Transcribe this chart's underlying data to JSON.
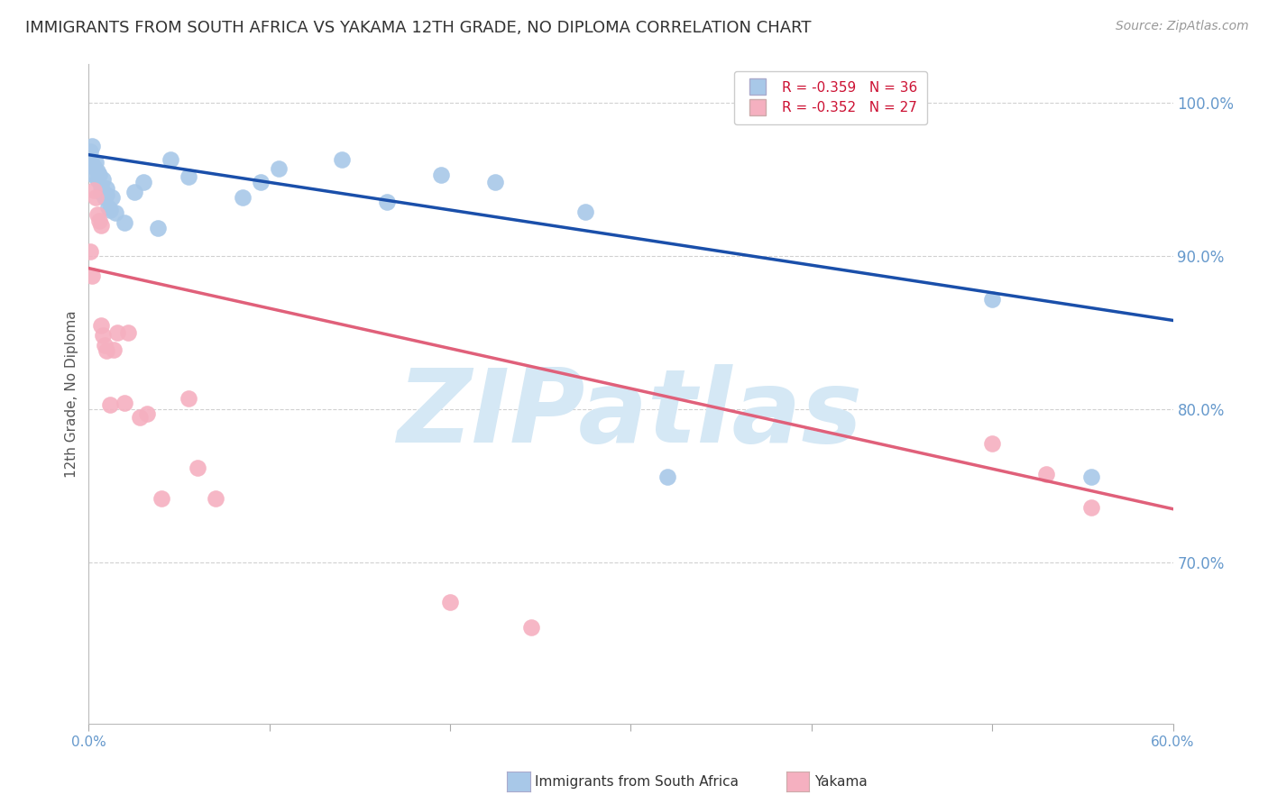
{
  "title": "IMMIGRANTS FROM SOUTH AFRICA VS YAKAMA 12TH GRADE, NO DIPLOMA CORRELATION CHART",
  "source": "Source: ZipAtlas.com",
  "ylabel": "12th Grade, No Diploma",
  "xlim": [
    0.0,
    0.6
  ],
  "ylim": [
    0.595,
    1.025
  ],
  "yticks": [
    0.7,
    0.8,
    0.9,
    1.0
  ],
  "xticks": [
    0.0,
    0.1,
    0.2,
    0.3,
    0.4,
    0.5,
    0.6
  ],
  "blue_R": -0.359,
  "blue_N": 36,
  "pink_R": -0.352,
  "pink_N": 27,
  "blue_line_x": [
    0.0,
    0.6
  ],
  "blue_line_y": [
    0.966,
    0.858
  ],
  "pink_line_x": [
    0.0,
    0.6
  ],
  "pink_line_y": [
    0.892,
    0.735
  ],
  "blue_dot_color": "#a8c8e8",
  "blue_line_color": "#1a4faa",
  "pink_dot_color": "#f5b0c0",
  "pink_line_color": "#e0607a",
  "blue_scatter_x": [
    0.001,
    0.002,
    0.002,
    0.003,
    0.003,
    0.004,
    0.005,
    0.005,
    0.006,
    0.007,
    0.007,
    0.008,
    0.009,
    0.01,
    0.01,
    0.011,
    0.012,
    0.013,
    0.015,
    0.02,
    0.025,
    0.03,
    0.038,
    0.045,
    0.055,
    0.085,
    0.095,
    0.105,
    0.14,
    0.165,
    0.195,
    0.225,
    0.275,
    0.32,
    0.5,
    0.555
  ],
  "blue_scatter_y": [
    0.968,
    0.972,
    0.96,
    0.958,
    0.953,
    0.961,
    0.95,
    0.955,
    0.953,
    0.945,
    0.942,
    0.95,
    0.938,
    0.944,
    0.94,
    0.932,
    0.93,
    0.938,
    0.928,
    0.922,
    0.942,
    0.948,
    0.918,
    0.963,
    0.952,
    0.938,
    0.948,
    0.957,
    0.963,
    0.935,
    0.953,
    0.948,
    0.929,
    0.756,
    0.872,
    0.756
  ],
  "pink_scatter_x": [
    0.001,
    0.002,
    0.003,
    0.004,
    0.005,
    0.006,
    0.007,
    0.007,
    0.008,
    0.009,
    0.01,
    0.012,
    0.014,
    0.016,
    0.02,
    0.022,
    0.028,
    0.032,
    0.04,
    0.055,
    0.06,
    0.07,
    0.2,
    0.245,
    0.5,
    0.53,
    0.555
  ],
  "pink_scatter_y": [
    0.903,
    0.887,
    0.943,
    0.938,
    0.927,
    0.923,
    0.855,
    0.92,
    0.848,
    0.842,
    0.838,
    0.803,
    0.839,
    0.85,
    0.804,
    0.85,
    0.795,
    0.797,
    0.742,
    0.807,
    0.762,
    0.742,
    0.674,
    0.658,
    0.778,
    0.758,
    0.736
  ],
  "watermark": "ZIPatlas",
  "watermark_color": "#d5e8f5",
  "background_color": "#ffffff",
  "grid_color": "#cccccc",
  "yaxis_label_color": "#6699cc",
  "title_color": "#333333",
  "title_fontsize": 13,
  "legend_r_color": "#cc1133",
  "legend_fontsize": 11,
  "dot_size": 180
}
